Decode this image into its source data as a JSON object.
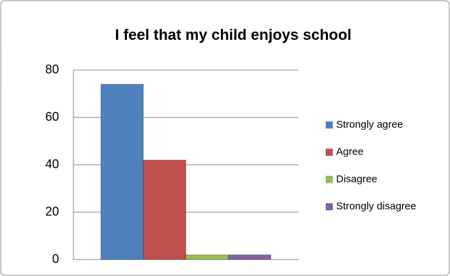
{
  "chart_data": {
    "type": "bar",
    "title": "I feel that my child enjoys school",
    "categories": [
      null
    ],
    "series": [
      {
        "name": "Strongly agree",
        "color": "#4f81bd",
        "values": [
          74
        ]
      },
      {
        "name": "Agree",
        "color": "#c0504d",
        "values": [
          42
        ]
      },
      {
        "name": "Disagree",
        "color": "#9bbb59",
        "values": [
          2
        ]
      },
      {
        "name": "Strongly disagree",
        "color": "#8064a2",
        "values": [
          2
        ]
      }
    ],
    "ylim": [
      0,
      80
    ],
    "yticks": [
      0,
      20,
      40,
      60,
      80
    ],
    "grid": true,
    "legend": "right"
  }
}
